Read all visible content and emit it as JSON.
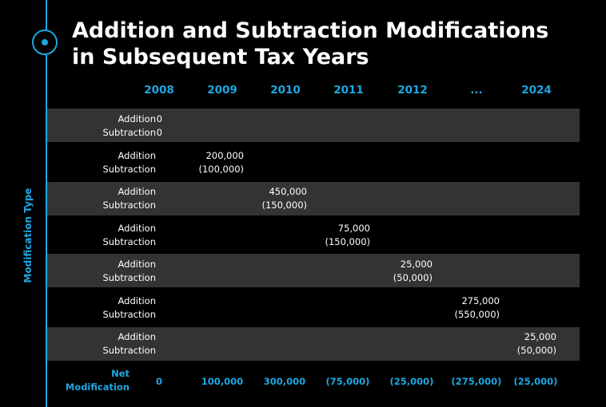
{
  "title": {
    "line1": "Addition and Subtraction Modifications",
    "line2": "in Subsequent Tax Years"
  },
  "axis_label": "Modification Type",
  "years": [
    "2008",
    "2009",
    "2010",
    "2011",
    "2012",
    "...",
    "2024"
  ],
  "row_labels": {
    "addition": "Addition",
    "subtraction": "Subtraction"
  },
  "rows": [
    {
      "year": "2008",
      "addition": "0",
      "subtraction": "0"
    },
    {
      "year": "2009",
      "addition": "200,000",
      "subtraction": "(100,000)"
    },
    {
      "year": "2010",
      "addition": "450,000",
      "subtraction": "(150,000)"
    },
    {
      "year": "2011",
      "addition": "75,000",
      "subtraction": "(150,000)"
    },
    {
      "year": "2012",
      "addition": "25,000",
      "subtraction": "(50,000)"
    },
    {
      "year": "...",
      "addition": "275,000",
      "subtraction": "(550,000)"
    },
    {
      "year": "2024",
      "addition": "25,000",
      "subtraction": "(50,000)"
    }
  ],
  "net": {
    "label_line1": "Net",
    "label_line2": "Modification",
    "values": [
      "0",
      "100,000",
      "300,000",
      "(75,000)",
      "(25,000)",
      "(275,000)",
      "(25,000)"
    ]
  },
  "colors": {
    "accent": "#1ea7e1",
    "background": "#000000",
    "band_shade": "#333333",
    "text": "#ffffff"
  }
}
